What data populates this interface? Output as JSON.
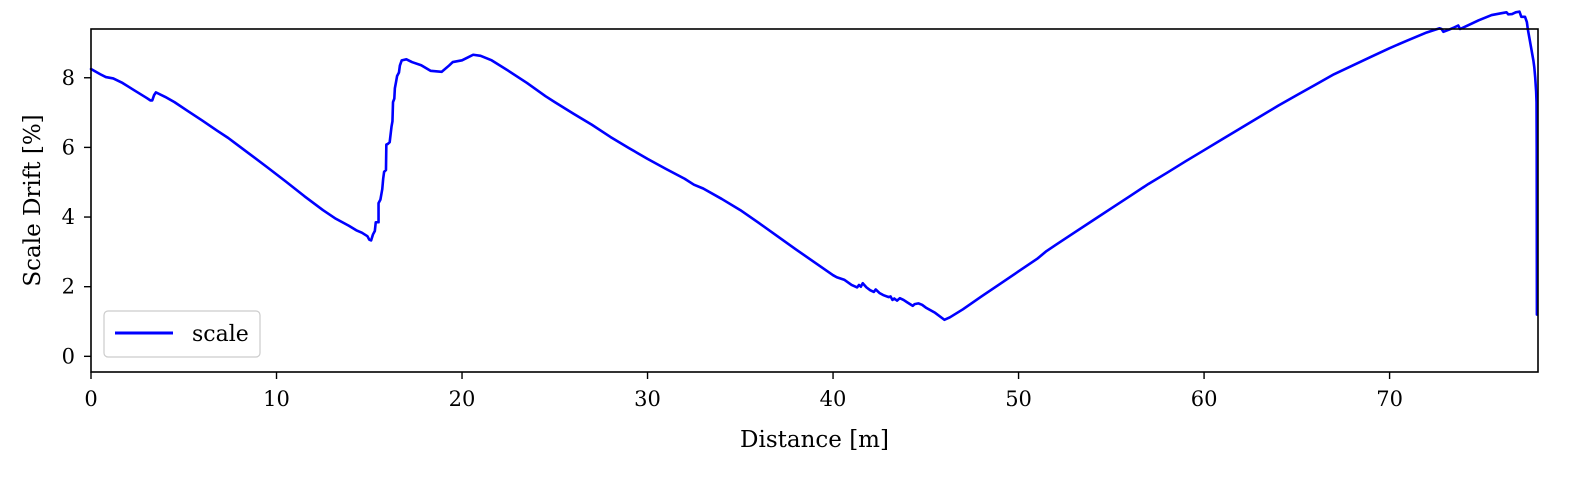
{
  "chart_data": {
    "type": "line",
    "xlabel": "Distance [m]",
    "ylabel": "Scale Drift [%]",
    "xlim": [
      0,
      78
    ],
    "ylim": [
      -0.45,
      9.4
    ],
    "x_ticks": [
      0,
      10,
      20,
      30,
      40,
      50,
      60,
      70
    ],
    "y_ticks": [
      0,
      2,
      4,
      6,
      8
    ],
    "grid": false,
    "legend_position": "lower-left",
    "series": [
      {
        "name": "scale",
        "color": "#0000ff",
        "points": [
          [
            0.0,
            8.25
          ],
          [
            0.5,
            8.1
          ],
          [
            0.8,
            8.02
          ],
          [
            1.2,
            7.98
          ],
          [
            1.7,
            7.85
          ],
          [
            2.3,
            7.65
          ],
          [
            3.0,
            7.42
          ],
          [
            3.2,
            7.35
          ],
          [
            3.3,
            7.35
          ],
          [
            3.4,
            7.5
          ],
          [
            3.5,
            7.58
          ],
          [
            4.0,
            7.45
          ],
          [
            4.5,
            7.3
          ],
          [
            5.2,
            7.05
          ],
          [
            6.0,
            6.77
          ],
          [
            6.8,
            6.48
          ],
          [
            7.4,
            6.27
          ],
          [
            7.7,
            6.15
          ],
          [
            8.5,
            5.83
          ],
          [
            9.5,
            5.43
          ],
          [
            10.5,
            5.02
          ],
          [
            11.5,
            4.6
          ],
          [
            12.5,
            4.2
          ],
          [
            13.2,
            3.95
          ],
          [
            13.9,
            3.75
          ],
          [
            14.3,
            3.62
          ],
          [
            14.6,
            3.55
          ],
          [
            14.9,
            3.45
          ],
          [
            15.0,
            3.35
          ],
          [
            15.1,
            3.33
          ],
          [
            15.2,
            3.5
          ],
          [
            15.3,
            3.6
          ],
          [
            15.35,
            3.85
          ],
          [
            15.5,
            3.85
          ],
          [
            15.5,
            4.4
          ],
          [
            15.6,
            4.5
          ],
          [
            15.7,
            4.8
          ],
          [
            15.75,
            5.1
          ],
          [
            15.8,
            5.3
          ],
          [
            15.9,
            5.35
          ],
          [
            15.92,
            6.08
          ],
          [
            16.0,
            6.1
          ],
          [
            16.1,
            6.15
          ],
          [
            16.2,
            6.6
          ],
          [
            16.25,
            6.75
          ],
          [
            16.28,
            7.3
          ],
          [
            16.35,
            7.4
          ],
          [
            16.38,
            7.7
          ],
          [
            16.45,
            7.9
          ],
          [
            16.5,
            8.05
          ],
          [
            16.6,
            8.15
          ],
          [
            16.65,
            8.35
          ],
          [
            16.75,
            8.5
          ],
          [
            17.0,
            8.53
          ],
          [
            17.3,
            8.45
          ],
          [
            17.8,
            8.36
          ],
          [
            18.3,
            8.2
          ],
          [
            18.9,
            8.17
          ],
          [
            19.3,
            8.35
          ],
          [
            19.5,
            8.45
          ],
          [
            20.0,
            8.5
          ],
          [
            20.3,
            8.58
          ],
          [
            20.6,
            8.66
          ],
          [
            21.0,
            8.63
          ],
          [
            21.6,
            8.5
          ],
          [
            22.5,
            8.2
          ],
          [
            23.5,
            7.85
          ],
          [
            24.5,
            7.47
          ],
          [
            25.0,
            7.3
          ],
          [
            26.0,
            6.97
          ],
          [
            27.0,
            6.65
          ],
          [
            28.0,
            6.3
          ],
          [
            29.0,
            5.98
          ],
          [
            30.0,
            5.67
          ],
          [
            31.0,
            5.38
          ],
          [
            32.0,
            5.1
          ],
          [
            32.5,
            4.93
          ],
          [
            33.0,
            4.82
          ],
          [
            34.0,
            4.52
          ],
          [
            35.0,
            4.2
          ],
          [
            36.0,
            3.83
          ],
          [
            37.0,
            3.45
          ],
          [
            38.0,
            3.07
          ],
          [
            39.0,
            2.7
          ],
          [
            40.0,
            2.33
          ],
          [
            40.2,
            2.27
          ],
          [
            40.6,
            2.2
          ],
          [
            41.0,
            2.05
          ],
          [
            41.3,
            1.98
          ],
          [
            41.4,
            2.05
          ],
          [
            41.5,
            2.0
          ],
          [
            41.6,
            2.1
          ],
          [
            41.8,
            1.98
          ],
          [
            42.0,
            1.9
          ],
          [
            42.2,
            1.85
          ],
          [
            42.3,
            1.92
          ],
          [
            42.5,
            1.82
          ],
          [
            42.7,
            1.76
          ],
          [
            43.0,
            1.7
          ],
          [
            43.1,
            1.72
          ],
          [
            43.2,
            1.62
          ],
          [
            43.3,
            1.66
          ],
          [
            43.45,
            1.6
          ],
          [
            43.6,
            1.67
          ],
          [
            43.8,
            1.62
          ],
          [
            44.0,
            1.55
          ],
          [
            44.3,
            1.45
          ],
          [
            44.4,
            1.5
          ],
          [
            44.6,
            1.52
          ],
          [
            44.8,
            1.48
          ],
          [
            45.0,
            1.4
          ],
          [
            45.5,
            1.25
          ],
          [
            46.0,
            1.05
          ],
          [
            46.3,
            1.12
          ],
          [
            47.0,
            1.35
          ],
          [
            48.0,
            1.72
          ],
          [
            49.0,
            2.08
          ],
          [
            50.0,
            2.44
          ],
          [
            51.0,
            2.8
          ],
          [
            51.5,
            3.02
          ],
          [
            52.0,
            3.2
          ],
          [
            53.0,
            3.55
          ],
          [
            54.0,
            3.9
          ],
          [
            55.0,
            4.25
          ],
          [
            56.0,
            4.6
          ],
          [
            57.0,
            4.95
          ],
          [
            58.0,
            5.27
          ],
          [
            59.0,
            5.6
          ],
          [
            60.0,
            5.92
          ],
          [
            61.0,
            6.24
          ],
          [
            62.0,
            6.56
          ],
          [
            63.0,
            6.88
          ],
          [
            64.0,
            7.2
          ],
          [
            65.0,
            7.5
          ],
          [
            66.0,
            7.8
          ],
          [
            67.0,
            8.1
          ],
          [
            68.0,
            8.35
          ],
          [
            69.0,
            8.6
          ],
          [
            70.0,
            8.85
          ],
          [
            71.0,
            9.08
          ],
          [
            72.0,
            9.3
          ],
          [
            72.7,
            9.42
          ],
          [
            72.8,
            9.4
          ],
          [
            72.9,
            9.32
          ],
          [
            73.2,
            9.38
          ],
          [
            73.5,
            9.45
          ],
          [
            73.7,
            9.5
          ],
          [
            73.8,
            9.4
          ],
          [
            74.2,
            9.5
          ],
          [
            74.8,
            9.65
          ],
          [
            75.5,
            9.8
          ],
          [
            76.0,
            9.85
          ],
          [
            76.3,
            9.88
          ],
          [
            76.4,
            9.82
          ],
          [
            76.6,
            9.83
          ],
          [
            76.8,
            9.88
          ],
          [
            77.0,
            9.9
          ],
          [
            77.1,
            9.75
          ],
          [
            77.3,
            9.75
          ],
          [
            77.4,
            9.6
          ],
          [
            77.45,
            9.4
          ],
          [
            77.5,
            9.25
          ],
          [
            77.55,
            9.1
          ],
          [
            77.6,
            8.95
          ],
          [
            77.65,
            8.8
          ],
          [
            77.7,
            8.65
          ],
          [
            77.75,
            8.5
          ],
          [
            77.8,
            8.3
          ],
          [
            77.85,
            8.0
          ],
          [
            77.9,
            7.6
          ],
          [
            77.92,
            7.3
          ],
          [
            77.93,
            6.0
          ],
          [
            77.94,
            1.2
          ]
        ]
      }
    ]
  }
}
